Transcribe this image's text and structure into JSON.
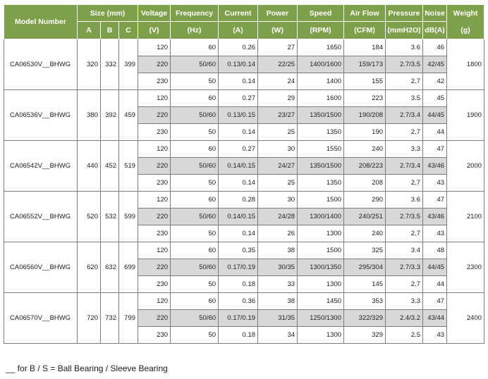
{
  "headers": {
    "model": "Model Number",
    "size": "Size (mm)",
    "a": "A",
    "b": "B",
    "c": "C",
    "voltage": "Voltage",
    "voltage_unit": "(V)",
    "frequency": "Frequency",
    "frequency_unit": "(Hz)",
    "current": "Current",
    "current_unit": "(A)",
    "power": "Power",
    "power_unit": "(W)",
    "speed": "Speed",
    "speed_unit": "(RPM)",
    "airflow": "Air Flow",
    "airflow_unit": "(CFM)",
    "pressure": "Pressure",
    "pressure_unit": "(mmH2O)",
    "noise": "Noise",
    "noise_unit": "dB(A)",
    "weight": "Weight",
    "weight_unit": "(g)"
  },
  "models": [
    {
      "model": "CA06530V__BHWG",
      "a": "320",
      "b": "332",
      "c": "399",
      "weight": "1800",
      "rows": [
        {
          "voltage": "120",
          "frequency": "60",
          "current": "0.26",
          "power": "27",
          "speed": "1650",
          "airflow": "184",
          "pressure": "3.6",
          "noise": "46"
        },
        {
          "voltage": "220",
          "frequency": "50/60",
          "current": "0.13/0.14",
          "power": "22/25",
          "speed": "1400/1600",
          "airflow": "159/173",
          "pressure": "2.7/3.5",
          "noise": "42/45"
        },
        {
          "voltage": "230",
          "frequency": "50",
          "current": "0.14",
          "power": "24",
          "speed": "1400",
          "airflow": "155",
          "pressure": "2.7",
          "noise": "42"
        }
      ]
    },
    {
      "model": "CA06536V__BHWG",
      "a": "380",
      "b": "392",
      "c": "459",
      "weight": "1900",
      "rows": [
        {
          "voltage": "120",
          "frequency": "60",
          "current": "0.27",
          "power": "29",
          "speed": "1600",
          "airflow": "223",
          "pressure": "3.5",
          "noise": "45"
        },
        {
          "voltage": "220",
          "frequency": "50/60",
          "current": "0.13/0.15",
          "power": "23/27",
          "speed": "1350/1500",
          "airflow": "190/208",
          "pressure": "2.7/3.4",
          "noise": "44/45"
        },
        {
          "voltage": "230",
          "frequency": "50",
          "current": "0.14",
          "power": "25",
          "speed": "1350",
          "airflow": "190",
          "pressure": "2.7",
          "noise": "44"
        }
      ]
    },
    {
      "model": "CA06542V__BHWG",
      "a": "440",
      "b": "452",
      "c": "519",
      "weight": "2000",
      "rows": [
        {
          "voltage": "120",
          "frequency": "60",
          "current": "0.27",
          "power": "30",
          "speed": "1550",
          "airflow": "240",
          "pressure": "3.3",
          "noise": "47"
        },
        {
          "voltage": "220",
          "frequency": "50/60",
          "current": "0.14/0.15",
          "power": "24/27",
          "speed": "1350/1500",
          "airflow": "208/223",
          "pressure": "2.7/3.4",
          "noise": "43/46"
        },
        {
          "voltage": "230",
          "frequency": "50",
          "current": "0.14",
          "power": "25",
          "speed": "1350",
          "airflow": "208",
          "pressure": "2.7",
          "noise": "43"
        }
      ]
    },
    {
      "model": "CA06552V__BHWG",
      "a": "520",
      "b": "532",
      "c": "599",
      "weight": "2100",
      "rows": [
        {
          "voltage": "120",
          "frequency": "60",
          "current": "0.28",
          "power": "30",
          "speed": "1500",
          "airflow": "290",
          "pressure": "3.6",
          "noise": "47"
        },
        {
          "voltage": "220",
          "frequency": "50/60",
          "current": "0.14/0.15",
          "power": "24/28",
          "speed": "1300/1400",
          "airflow": "240/251",
          "pressure": "2.7/3.5",
          "noise": "43/46"
        },
        {
          "voltage": "230",
          "frequency": "50",
          "current": "0.14",
          "power": "26",
          "speed": "1300",
          "airflow": "240",
          "pressure": "2.7",
          "noise": "43"
        }
      ]
    },
    {
      "model": "CA06560V__BHWG",
      "a": "620",
      "b": "632",
      "c": "699",
      "weight": "2300",
      "rows": [
        {
          "voltage": "120",
          "frequency": "60",
          "current": "0.35",
          "power": "38",
          "speed": "1500",
          "airflow": "325",
          "pressure": "3.4",
          "noise": "48"
        },
        {
          "voltage": "220",
          "frequency": "50/60",
          "current": "0.17/0.19",
          "power": "30/35",
          "speed": "1300/1350",
          "airflow": "295/304",
          "pressure": "2.7/3.3",
          "noise": "44/45"
        },
        {
          "voltage": "230",
          "frequency": "50",
          "current": "0.18",
          "power": "33",
          "speed": "1300",
          "airflow": "145",
          "pressure": "2.7",
          "noise": "44"
        }
      ]
    },
    {
      "model": "CA06570V__BHWG",
      "a": "720",
      "b": "732",
      "c": "799",
      "weight": "2400",
      "rows": [
        {
          "voltage": "120",
          "frequency": "60",
          "current": "0.36",
          "power": "38",
          "speed": "1450",
          "airflow": "353",
          "pressure": "3.3",
          "noise": "47"
        },
        {
          "voltage": "220",
          "frequency": "50/60",
          "current": "0.17/0.19",
          "power": "31/35",
          "speed": "1250/1300",
          "airflow": "322/329",
          "pressure": "2.4/3.2",
          "noise": "43/44"
        },
        {
          "voltage": "230",
          "frequency": "50",
          "current": "0.18",
          "power": "34",
          "speed": "1300",
          "airflow": "329",
          "pressure": "2.5",
          "noise": "43"
        }
      ]
    }
  ],
  "footnote": "__ for B / S = Ball Bearing / Sleeve Bearing"
}
